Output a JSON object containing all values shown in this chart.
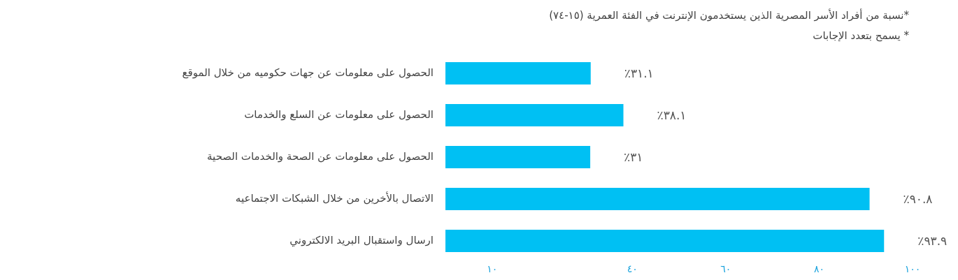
{
  "chart_data": {
    "type": "bar",
    "orientation": "horizontal",
    "annotations": [
      "*نسبة من أفراد الأسر المصرية الذين يستخدمون الإنترنت في الفئة العمرية (١٥-٧٤)",
      "* يسمح بتعدد الإجابات"
    ],
    "categories": [
      "الحصول على معلومات عن جهات حكوميه من خلال الموقع",
      "الحصول على معلومات عن السلع والخدمات",
      "الحصول على معلومات عن الصحة والخدمات الصحية",
      "الاتصال بالأخرين من خلال الشبكات الاجتماعيه",
      "ارسال واستقبال البريد الالكتروني"
    ],
    "values": [
      31.1,
      38.1,
      31,
      90.8,
      93.9
    ],
    "value_labels": [
      "٪٣١.١",
      "٪٣٨.١",
      "٪٣١",
      "٪٩٠.٨",
      "٪٩٣.٩"
    ],
    "color": "#00c0f3",
    "xlim": [
      0,
      100
    ],
    "xticks": [
      {
        "value": 10,
        "label": "١٠"
      },
      {
        "value": 40,
        "label": "٤٠"
      },
      {
        "value": 60,
        "label": "٦٠"
      },
      {
        "value": 80,
        "label": "٨٠"
      },
      {
        "value": 100,
        "label": "١٠٠"
      }
    ],
    "grid": false,
    "legend": false
  }
}
